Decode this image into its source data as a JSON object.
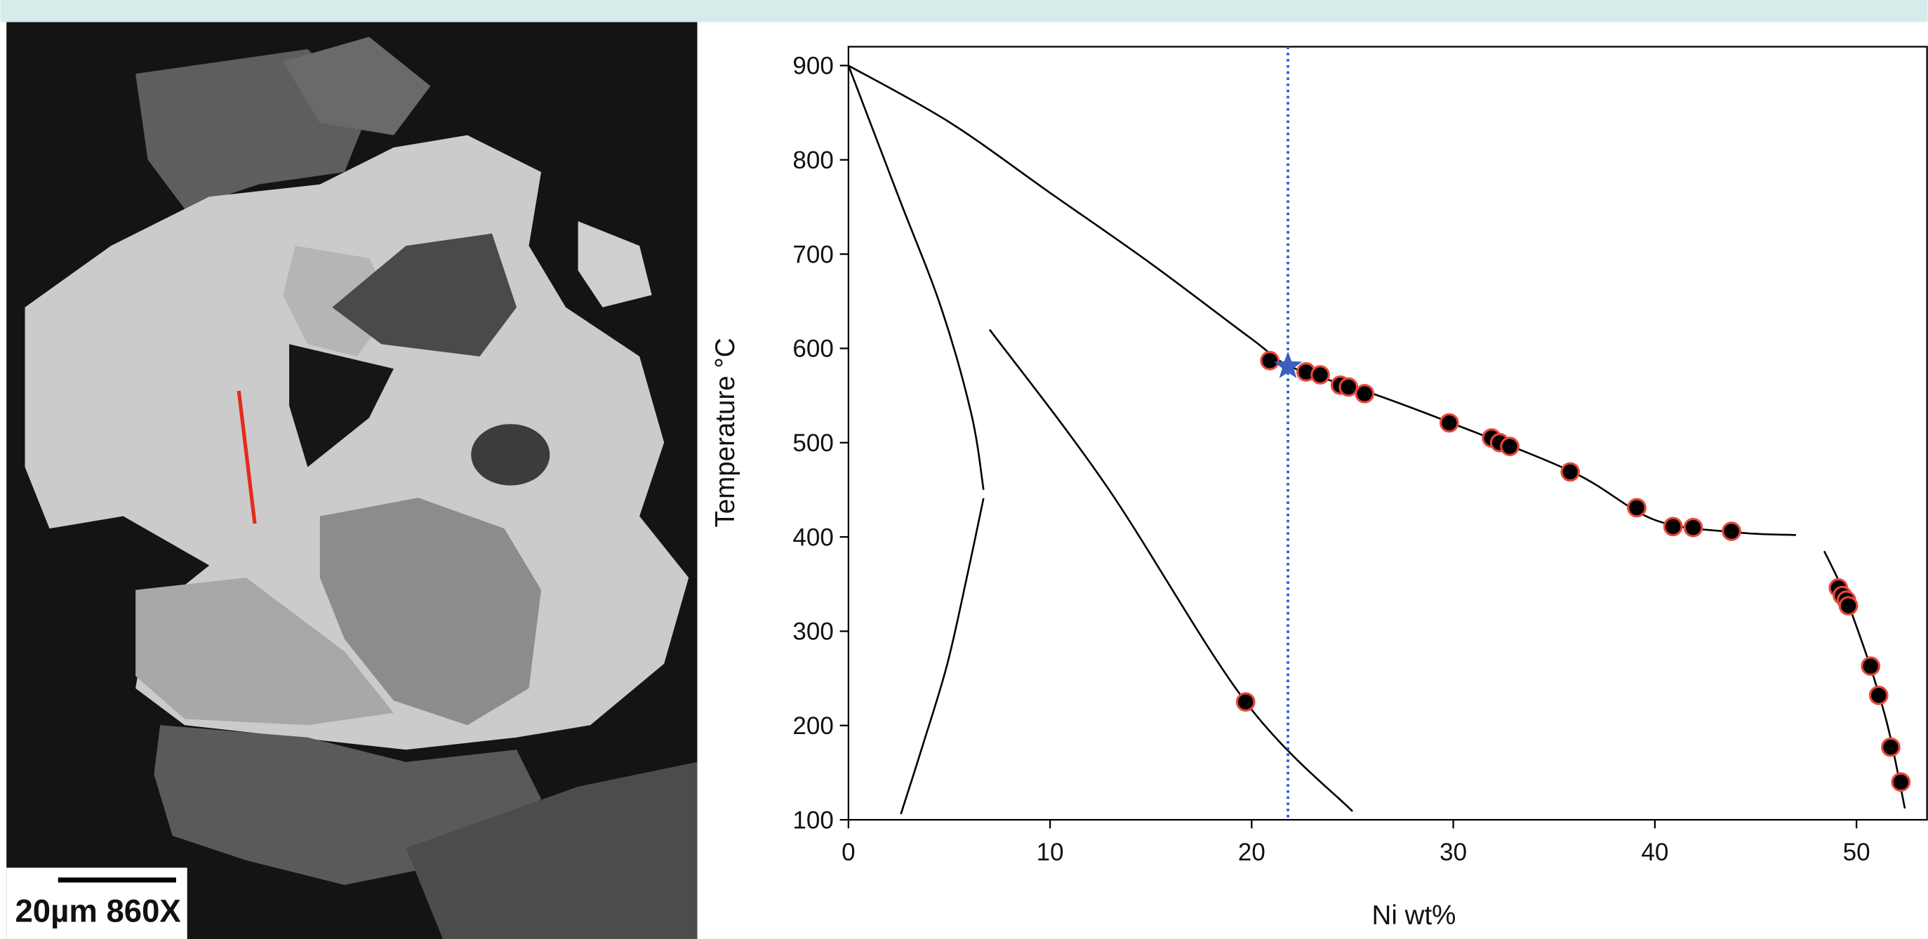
{
  "image_panel": {
    "scale_label": "20µm 860X"
  },
  "chart_data": {
    "type": "scatter",
    "xlabel": "Ni wt%",
    "ylabel": "Temperature °C",
    "xlim": [
      0,
      53.5
    ],
    "ylim": [
      100,
      920
    ],
    "xticks": [
      0,
      10,
      20,
      30,
      40,
      50
    ],
    "yticks": [
      100,
      200,
      300,
      400,
      500,
      600,
      700,
      800,
      900
    ],
    "series": [
      {
        "color": "#000000",
        "edge_color": "#e8473a",
        "x": [
          20.9,
          22.7,
          23.4,
          24.4,
          24.8,
          25.6,
          29.8,
          31.9,
          32.3,
          32.8,
          35.8,
          39.1,
          40.9,
          41.9,
          43.8,
          49.1,
          49.3,
          49.5,
          49.6,
          50.7,
          51.1,
          51.7,
          52.2,
          19.7
        ],
        "values": [
          587,
          575,
          572,
          561,
          559,
          552,
          521,
          505,
          500,
          496,
          469,
          431,
          411,
          410,
          406,
          346,
          338,
          333,
          327,
          263,
          232,
          177,
          140,
          225
        ]
      }
    ],
    "curves": [
      {
        "color": "#000000",
        "x": [
          0,
          5,
          10,
          15,
          20,
          22,
          26,
          30,
          36,
          40,
          44,
          47
        ],
        "y": [
          900,
          840,
          765,
          690,
          610,
          580,
          552,
          520,
          468,
          418,
          405,
          402
        ]
      },
      {
        "color": "#000000",
        "x": [
          48.4,
          49.3,
          50.0,
          50.8,
          51.6,
          52.4
        ],
        "y": [
          385,
          345,
          305,
          255,
          195,
          112
        ]
      },
      {
        "color": "#000000",
        "x": [
          0,
          2.5,
          4.6,
          6.1,
          6.7
        ],
        "y": [
          900,
          760,
          643,
          530,
          450
        ]
      },
      {
        "color": "#000000",
        "x": [
          6.7,
          5.9,
          4.9,
          3.7,
          2.6
        ],
        "y": [
          441,
          360,
          265,
          180,
          106
        ]
      },
      {
        "color": "#000000",
        "x": [
          7.0,
          12.8,
          19.7,
          25.0
        ],
        "y": [
          620,
          454,
          225,
          109
        ]
      }
    ],
    "reference_x": 21.8,
    "reference_color": "#2a5fd0",
    "star": {
      "x": 21.8,
      "y": 581,
      "color": "#3a5fc0"
    }
  }
}
